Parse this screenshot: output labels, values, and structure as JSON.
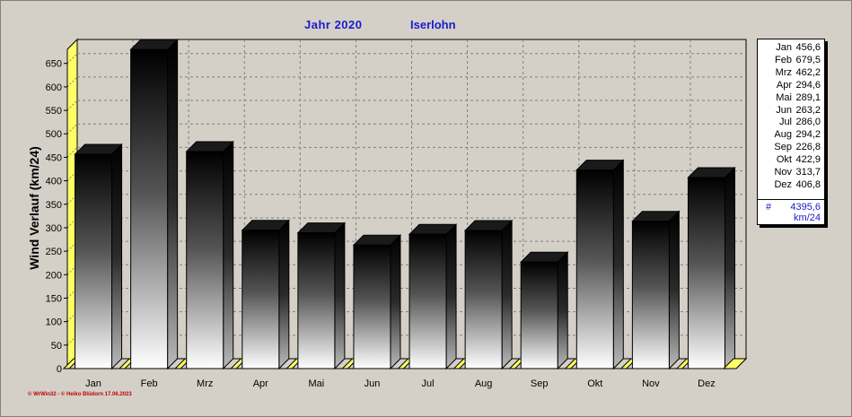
{
  "chart_data": {
    "type": "bar",
    "title_year": "Jahr  2020",
    "title_station": "Iserlohn",
    "ylabel": "Wind Verlauf  (km/24)",
    "ylim": [
      0,
      680
    ],
    "yticks": [
      0,
      50,
      100,
      150,
      200,
      250,
      300,
      350,
      400,
      450,
      500,
      550,
      600,
      650
    ],
    "grid": true,
    "legend_position": "right",
    "categories": [
      "Jan",
      "Feb",
      "Mrz",
      "Apr",
      "Mai",
      "Jun",
      "Jul",
      "Aug",
      "Sep",
      "Okt",
      "Nov",
      "Dez"
    ],
    "values": [
      456.6,
      679.5,
      462.2,
      294.6,
      289.1,
      263.2,
      286.0,
      294.2,
      226.8,
      422.9,
      313.7,
      406.8
    ],
    "value_labels": [
      "456,6",
      "679,5",
      "462,2",
      "294,6",
      "289,1",
      "263,2",
      "286,0",
      "294,2",
      "226,8",
      "422,9",
      "313,7",
      "406,8"
    ],
    "total_symbol": "#",
    "total_label": "4395,6",
    "total_unit": "km/24"
  },
  "colors": {
    "title": "#1a1acc",
    "wall": "#ffff66",
    "footer": "#c00000",
    "background": "#d4d0c8"
  },
  "footer": "© WrWin32  -  © Heiko Blüdorn  17.06.2023"
}
